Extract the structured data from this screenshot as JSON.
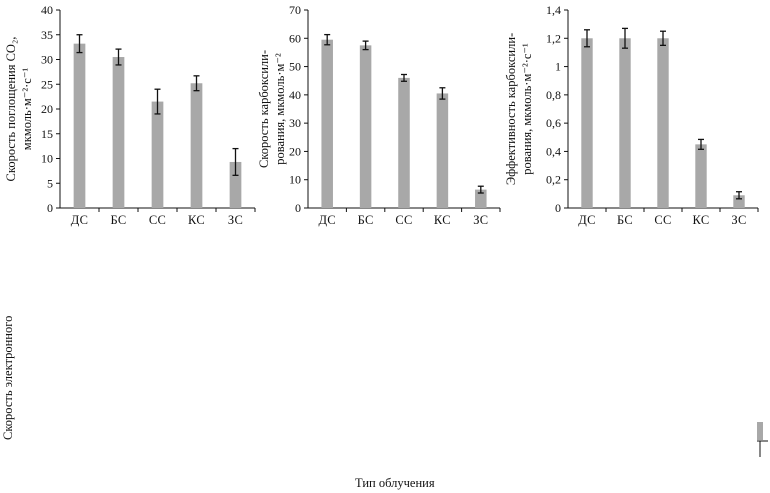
{
  "chart_data": [
    {
      "type": "bar",
      "categories": [
        "ДС",
        "БС",
        "СС",
        "КС",
        "ЗС"
      ],
      "values": [
        33.2,
        30.5,
        21.5,
        25.2,
        9.3
      ],
      "errors": [
        1.8,
        1.6,
        2.5,
        1.5,
        2.7
      ],
      "ylim": [
        0,
        40
      ],
      "yticks": [
        "0",
        "5",
        "10",
        "15",
        "20",
        "25",
        "30",
        "35",
        "40"
      ],
      "ylabel_lines": [
        "Скорость поглощения CO₂,",
        "мкмоль·м⁻²·с⁻¹"
      ]
    },
    {
      "type": "bar",
      "categories": [
        "ДС",
        "БС",
        "СС",
        "КС",
        "ЗС"
      ],
      "values": [
        59.5,
        57.5,
        46.0,
        40.5,
        6.5
      ],
      "errors": [
        1.8,
        1.5,
        1.2,
        2.0,
        1.2
      ],
      "ylim": [
        0,
        70
      ],
      "yticks": [
        "0",
        "10",
        "20",
        "30",
        "40",
        "50",
        "60",
        "70"
      ],
      "ylabel_lines": [
        "Скорость карбоксили-",
        "рования, мкмоль·м⁻²"
      ]
    },
    {
      "type": "bar",
      "categories": [
        "ДС",
        "БС",
        "СС",
        "КС",
        "ЗС"
      ],
      "values": [
        1.2,
        1.2,
        1.2,
        0.45,
        0.09
      ],
      "errors": [
        0.06,
        0.07,
        0.05,
        0.035,
        0.025
      ],
      "ylim": [
        0,
        1.4
      ],
      "yticks": [
        "0",
        "0,2",
        "0,4",
        "0,6",
        "0,8",
        "1",
        "1,2",
        "1,4"
      ],
      "ylabel_lines": [
        "Эффективность карбоксили-",
        "рования, мкмоль·м⁻²·с⁻¹"
      ]
    }
  ],
  "partial_labels": {
    "left_ylabel_fragment": "Скорость электронного",
    "bottom_xlabel_fragment": "Тип облучения"
  }
}
